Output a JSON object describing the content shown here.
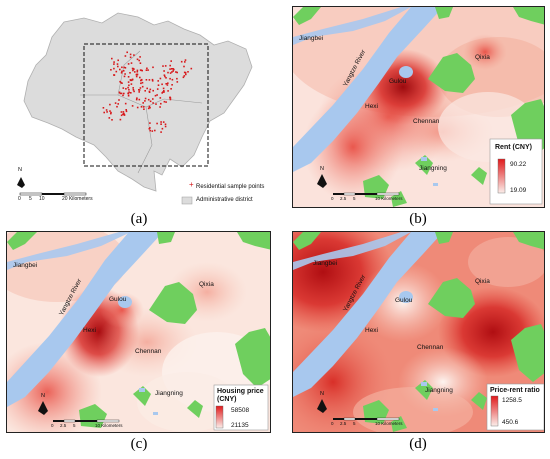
{
  "captions": {
    "a": "(a)",
    "b": "(b)",
    "c": "(c)",
    "d": "(d)"
  },
  "panel_a": {
    "legend": {
      "points_label": "Residential sample points",
      "district_label": "Administrative district"
    },
    "scale": {
      "ticks": [
        "0",
        "5",
        "10",
        "20 Kilometers"
      ]
    },
    "north": "N"
  },
  "places": {
    "jiangbei": "Jiangbei",
    "river": "Yangtze River",
    "gulou": "Gulou",
    "qixia": "Qixia",
    "hexi": "Hexi",
    "chennan": "Chennan",
    "jiangning": "Jiangning"
  },
  "panel_b": {
    "legend": {
      "title": "Rent (CNY)",
      "max": "90.22",
      "min": "19.09"
    },
    "scale": {
      "ticks": [
        "0",
        "2.5",
        "5",
        "10 Kilometers"
      ]
    },
    "north": "N",
    "colors": {
      "high": "#e01a1c",
      "low": "#fbeeea"
    }
  },
  "panel_c": {
    "legend": {
      "title_line1": "Housing price",
      "title_line2": "(CNY)",
      "max": "58508",
      "min": "21135"
    },
    "scale": {
      "ticks": [
        "0",
        "2.5",
        "5",
        "10 Kilometers"
      ]
    },
    "north": "N",
    "colors": {
      "high": "#e01a1c",
      "low": "#fbeeea"
    }
  },
  "panel_d": {
    "legend": {
      "title": "Price-rent ratio",
      "max": "1258.5",
      "min": "450.6"
    },
    "scale": {
      "ticks": [
        "0",
        "2.5",
        "5",
        "10 Kilometers"
      ]
    },
    "north": "N",
    "colors": {
      "high": "#e01a1c",
      "low": "#fbeeea"
    }
  },
  "colors": {
    "water": "#a8c8ee",
    "green": "#6fcf5e",
    "district": "#dcdcdc",
    "points": "#d7191c"
  }
}
